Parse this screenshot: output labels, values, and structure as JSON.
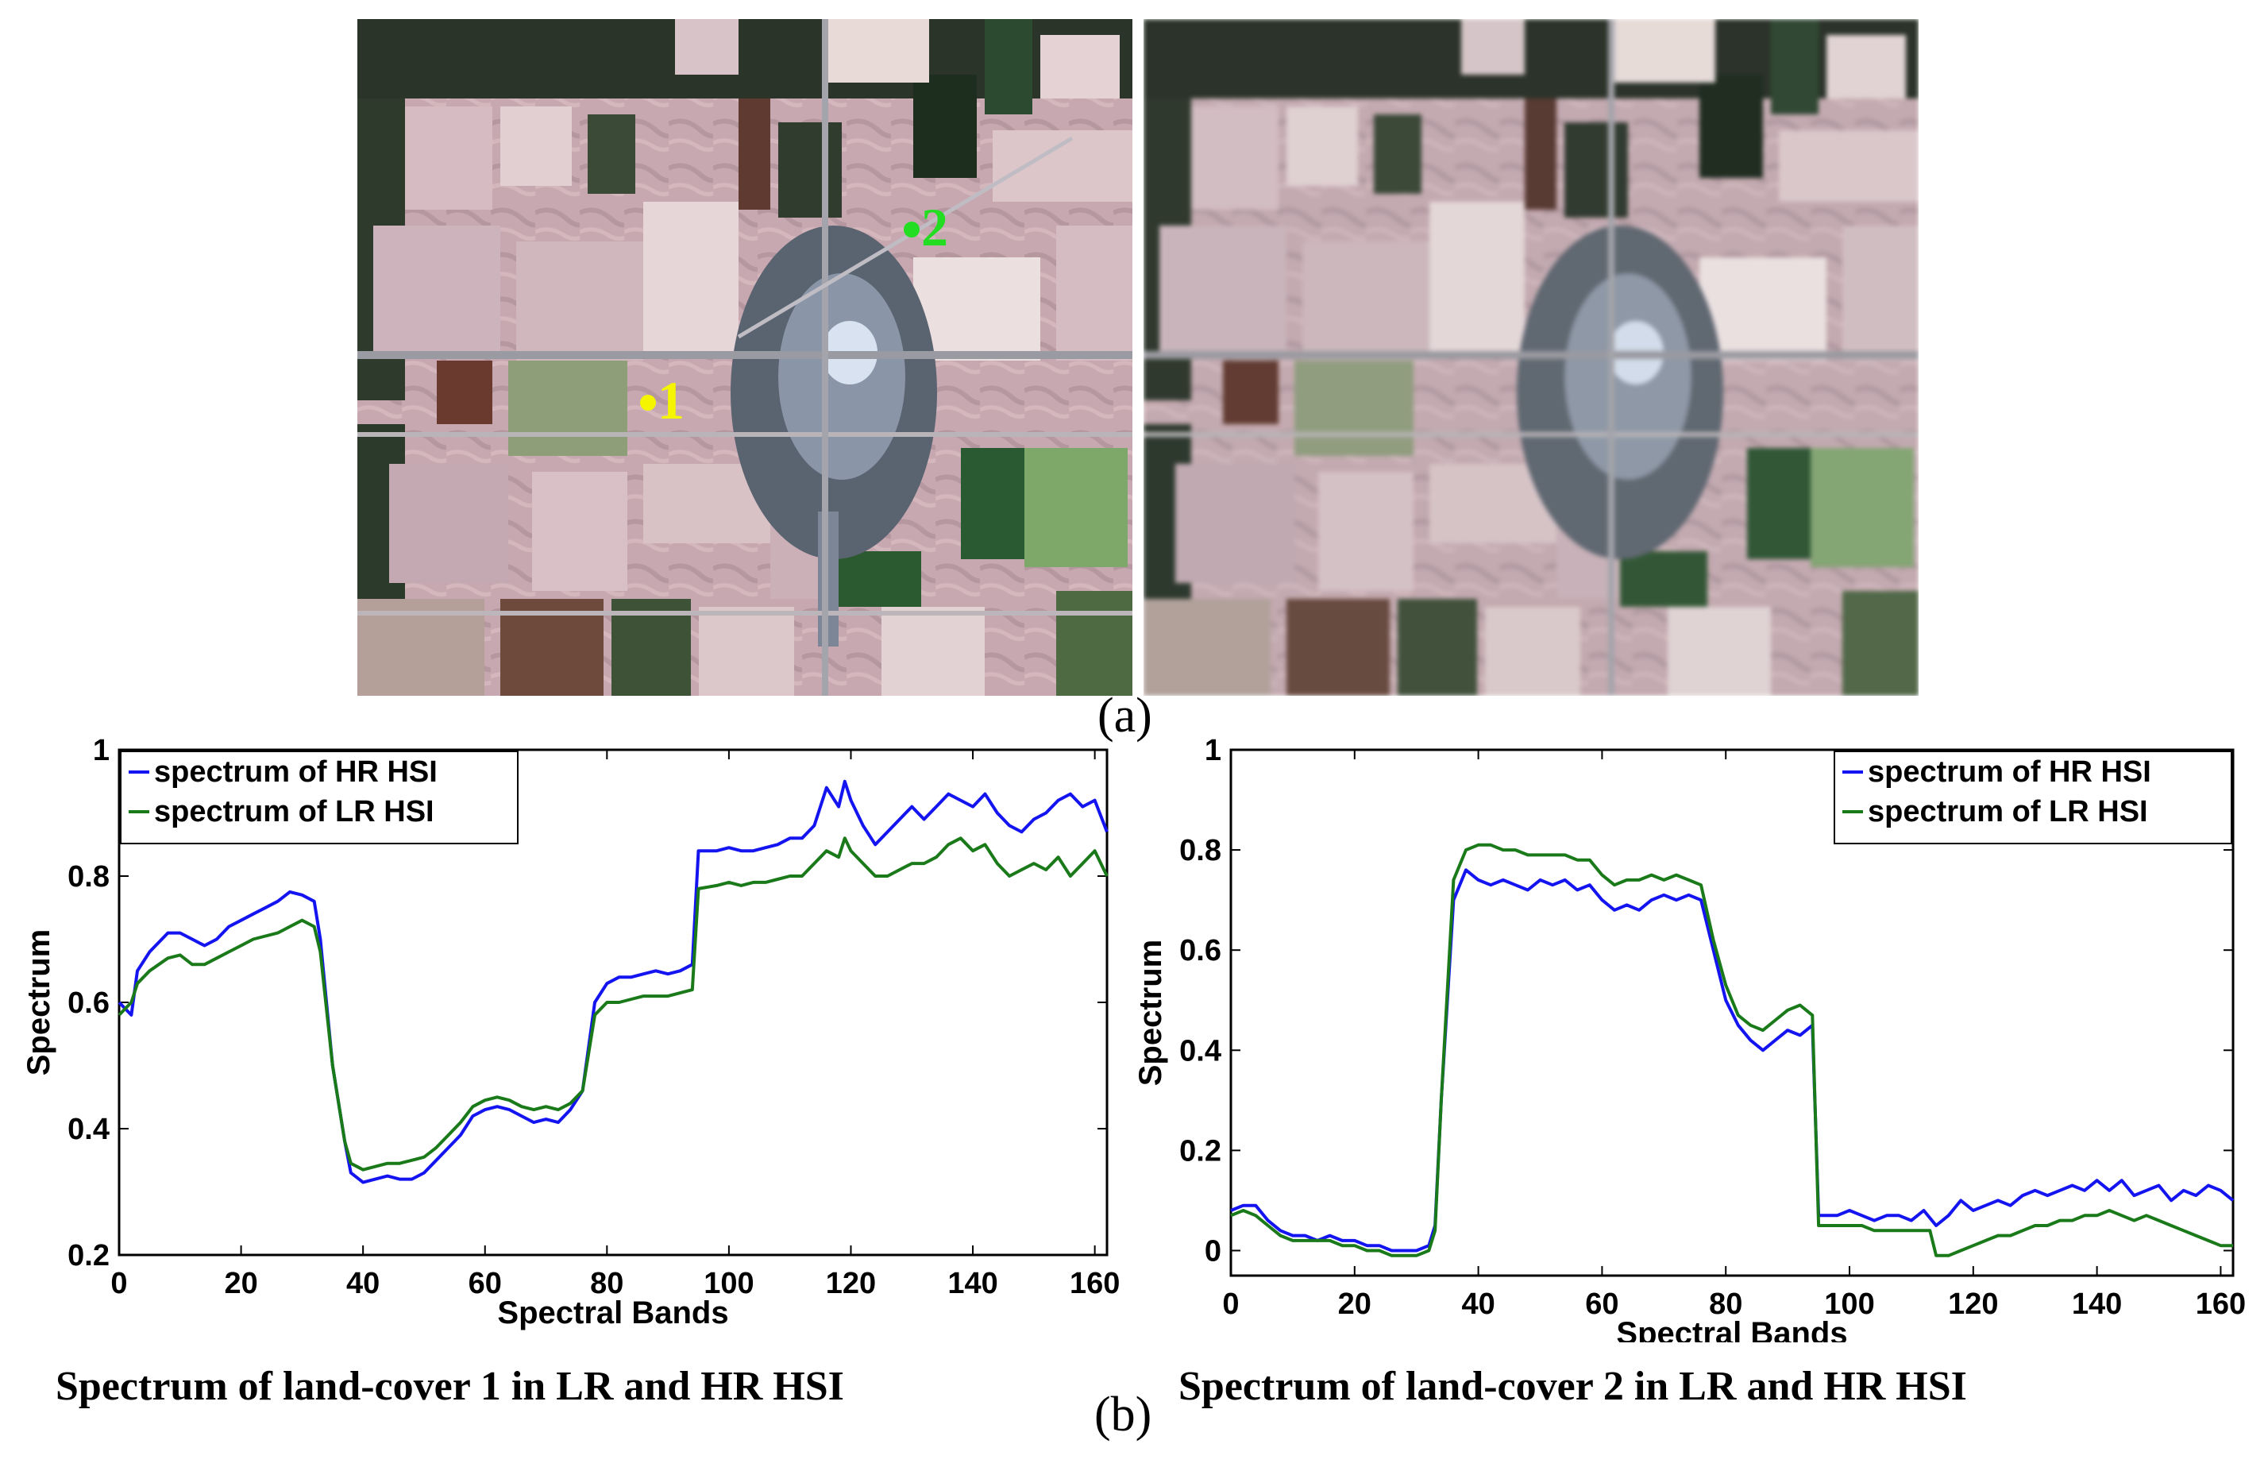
{
  "figure": {
    "label_a": "(a)",
    "label_b": "(b)",
    "markers": [
      {
        "label": "1",
        "color": "#f5f500"
      },
      {
        "label": "2",
        "color": "#22dd22"
      }
    ],
    "captions": [
      "Spectrum of land-cover 1 in LR and HR HSI",
      "Spectrum of land-cover 2 in LR and HR HSI"
    ]
  },
  "colors": {
    "hr": "#1414f0",
    "lr": "#1a7a1a"
  },
  "chart_data": [
    {
      "type": "line",
      "title": "Spectrum of land-cover 1 in LR and HR HSI",
      "xlabel": "Spectral Bands",
      "ylabel": "Spectrum",
      "xlim": [
        0,
        162
      ],
      "ylim": [
        0.2,
        1.0
      ],
      "xticks": [
        0,
        20,
        40,
        60,
        80,
        100,
        120,
        140,
        160
      ],
      "yticks": [
        0.2,
        0.4,
        0.6,
        0.8,
        1.0
      ],
      "ytick_labels": [
        "0.2",
        "0.4",
        "0.6",
        "0.8",
        "1"
      ],
      "legend_position": "top-left",
      "series": [
        {
          "name": "spectrum of HR HSI",
          "color": "#1414f0",
          "x": [
            0,
            2,
            3,
            5,
            8,
            10,
            12,
            14,
            16,
            18,
            20,
            22,
            24,
            26,
            28,
            30,
            32,
            33,
            35,
            37,
            38,
            40,
            42,
            44,
            46,
            48,
            50,
            52,
            54,
            56,
            58,
            60,
            62,
            64,
            66,
            68,
            70,
            72,
            74,
            76,
            78,
            80,
            82,
            84,
            86,
            88,
            90,
            92,
            94,
            95,
            98,
            100,
            102,
            104,
            106,
            108,
            110,
            112,
            114,
            116,
            118,
            119,
            120,
            122,
            124,
            126,
            128,
            130,
            132,
            134,
            136,
            138,
            140,
            142,
            144,
            146,
            148,
            150,
            152,
            154,
            156,
            158,
            160,
            162
          ],
          "y": [
            0.6,
            0.58,
            0.65,
            0.68,
            0.71,
            0.71,
            0.7,
            0.69,
            0.7,
            0.72,
            0.73,
            0.74,
            0.75,
            0.76,
            0.775,
            0.77,
            0.76,
            0.7,
            0.5,
            0.38,
            0.33,
            0.315,
            0.32,
            0.325,
            0.32,
            0.32,
            0.33,
            0.35,
            0.37,
            0.39,
            0.42,
            0.43,
            0.435,
            0.43,
            0.42,
            0.41,
            0.415,
            0.41,
            0.43,
            0.46,
            0.6,
            0.63,
            0.64,
            0.64,
            0.645,
            0.65,
            0.645,
            0.65,
            0.66,
            0.84,
            0.84,
            0.845,
            0.84,
            0.84,
            0.845,
            0.85,
            0.86,
            0.86,
            0.88,
            0.94,
            0.91,
            0.95,
            0.92,
            0.88,
            0.85,
            0.87,
            0.89,
            0.91,
            0.89,
            0.91,
            0.93,
            0.92,
            0.91,
            0.93,
            0.9,
            0.88,
            0.87,
            0.89,
            0.9,
            0.92,
            0.93,
            0.91,
            0.92,
            0.87
          ]
        },
        {
          "name": "spectrum of LR HSI",
          "color": "#1a7a1a",
          "x": [
            0,
            2,
            3,
            5,
            8,
            10,
            12,
            14,
            16,
            18,
            20,
            22,
            24,
            26,
            28,
            30,
            32,
            33,
            35,
            37,
            38,
            40,
            42,
            44,
            46,
            48,
            50,
            52,
            54,
            56,
            58,
            60,
            62,
            64,
            66,
            68,
            70,
            72,
            74,
            76,
            78,
            80,
            82,
            84,
            86,
            88,
            90,
            92,
            94,
            95,
            98,
            100,
            102,
            104,
            106,
            108,
            110,
            112,
            114,
            116,
            118,
            119,
            120,
            122,
            124,
            126,
            128,
            130,
            132,
            134,
            136,
            138,
            140,
            142,
            144,
            146,
            148,
            150,
            152,
            154,
            156,
            158,
            160,
            162
          ],
          "y": [
            0.58,
            0.6,
            0.63,
            0.65,
            0.67,
            0.675,
            0.66,
            0.66,
            0.67,
            0.68,
            0.69,
            0.7,
            0.705,
            0.71,
            0.72,
            0.73,
            0.72,
            0.68,
            0.5,
            0.38,
            0.345,
            0.335,
            0.34,
            0.345,
            0.345,
            0.35,
            0.355,
            0.37,
            0.39,
            0.41,
            0.435,
            0.445,
            0.45,
            0.445,
            0.435,
            0.43,
            0.435,
            0.43,
            0.44,
            0.46,
            0.58,
            0.6,
            0.6,
            0.605,
            0.61,
            0.61,
            0.61,
            0.615,
            0.62,
            0.78,
            0.785,
            0.79,
            0.785,
            0.79,
            0.79,
            0.795,
            0.8,
            0.8,
            0.82,
            0.84,
            0.83,
            0.86,
            0.84,
            0.82,
            0.8,
            0.8,
            0.81,
            0.82,
            0.82,
            0.83,
            0.85,
            0.86,
            0.84,
            0.85,
            0.82,
            0.8,
            0.81,
            0.82,
            0.81,
            0.83,
            0.8,
            0.82,
            0.84,
            0.8
          ]
        }
      ]
    },
    {
      "type": "line",
      "title": "Spectrum of land-cover 2 in LR and HR HSI",
      "xlabel": "Spectral Bands",
      "ylabel": "Spectrum",
      "xlim": [
        0,
        162
      ],
      "ylim": [
        -0.05,
        1.0
      ],
      "xticks": [
        0,
        20,
        40,
        60,
        80,
        100,
        120,
        140,
        160
      ],
      "yticks": [
        0,
        0.2,
        0.4,
        0.6,
        0.8,
        1.0
      ],
      "ytick_labels": [
        "0",
        "0.2",
        "0.4",
        "0.6",
        "0.8",
        "1"
      ],
      "legend_position": "top-right",
      "series": [
        {
          "name": "spectrum of HR HSI",
          "color": "#1414f0",
          "x": [
            0,
            2,
            4,
            6,
            8,
            10,
            12,
            14,
            16,
            18,
            20,
            22,
            24,
            26,
            28,
            30,
            32,
            33,
            34,
            36,
            38,
            40,
            42,
            44,
            46,
            48,
            50,
            52,
            54,
            56,
            58,
            60,
            62,
            64,
            66,
            68,
            70,
            72,
            74,
            76,
            78,
            80,
            82,
            84,
            86,
            88,
            90,
            92,
            94,
            95,
            96,
            98,
            100,
            102,
            104,
            106,
            108,
            110,
            112,
            114,
            116,
            118,
            120,
            122,
            124,
            126,
            128,
            130,
            132,
            134,
            136,
            138,
            140,
            142,
            144,
            146,
            148,
            150,
            152,
            154,
            156,
            158,
            160,
            162
          ],
          "y": [
            0.08,
            0.09,
            0.09,
            0.06,
            0.04,
            0.03,
            0.03,
            0.02,
            0.03,
            0.02,
            0.02,
            0.01,
            0.01,
            0.0,
            0.0,
            0.0,
            0.01,
            0.05,
            0.3,
            0.7,
            0.76,
            0.74,
            0.73,
            0.74,
            0.73,
            0.72,
            0.74,
            0.73,
            0.74,
            0.72,
            0.73,
            0.7,
            0.68,
            0.69,
            0.68,
            0.7,
            0.71,
            0.7,
            0.71,
            0.7,
            0.6,
            0.5,
            0.45,
            0.42,
            0.4,
            0.42,
            0.44,
            0.43,
            0.45,
            0.07,
            0.07,
            0.07,
            0.08,
            0.07,
            0.06,
            0.07,
            0.07,
            0.06,
            0.08,
            0.05,
            0.07,
            0.1,
            0.08,
            0.09,
            0.1,
            0.09,
            0.11,
            0.12,
            0.11,
            0.12,
            0.13,
            0.12,
            0.14,
            0.12,
            0.14,
            0.11,
            0.12,
            0.13,
            0.1,
            0.12,
            0.11,
            0.13,
            0.12,
            0.1
          ]
        },
        {
          "name": "spectrum of LR HSI",
          "color": "#1a7a1a",
          "x": [
            0,
            2,
            4,
            6,
            8,
            10,
            12,
            14,
            16,
            18,
            20,
            22,
            24,
            26,
            28,
            30,
            32,
            33,
            34,
            36,
            38,
            40,
            42,
            44,
            46,
            48,
            50,
            52,
            54,
            56,
            58,
            60,
            62,
            64,
            66,
            68,
            70,
            72,
            74,
            76,
            78,
            80,
            82,
            84,
            86,
            88,
            90,
            92,
            94,
            95,
            96,
            98,
            100,
            102,
            104,
            106,
            108,
            110,
            112,
            113,
            114,
            116,
            118,
            120,
            122,
            124,
            126,
            128,
            130,
            132,
            134,
            136,
            138,
            140,
            142,
            144,
            146,
            148,
            150,
            152,
            154,
            156,
            158,
            160,
            162
          ],
          "y": [
            0.07,
            0.08,
            0.07,
            0.05,
            0.03,
            0.02,
            0.02,
            0.02,
            0.02,
            0.01,
            0.01,
            0.0,
            0.0,
            -0.01,
            -0.01,
            -0.01,
            0.0,
            0.04,
            0.3,
            0.74,
            0.8,
            0.81,
            0.81,
            0.8,
            0.8,
            0.79,
            0.79,
            0.79,
            0.79,
            0.78,
            0.78,
            0.75,
            0.73,
            0.74,
            0.74,
            0.75,
            0.74,
            0.75,
            0.74,
            0.73,
            0.62,
            0.53,
            0.47,
            0.45,
            0.44,
            0.46,
            0.48,
            0.49,
            0.47,
            0.05,
            0.05,
            0.05,
            0.05,
            0.05,
            0.04,
            0.04,
            0.04,
            0.04,
            0.04,
            0.04,
            -0.01,
            -0.01,
            0.0,
            0.01,
            0.02,
            0.03,
            0.03,
            0.04,
            0.05,
            0.05,
            0.06,
            0.06,
            0.07,
            0.07,
            0.08,
            0.07,
            0.06,
            0.07,
            0.06,
            0.05,
            0.04,
            0.03,
            0.02,
            0.01,
            0.01
          ]
        }
      ]
    }
  ]
}
